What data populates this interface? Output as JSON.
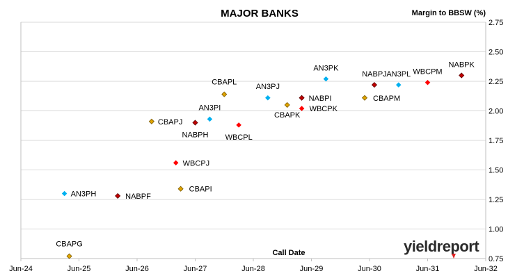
{
  "chart_data": {
    "type": "scatter",
    "title": "MAJOR BANKS",
    "ylabel": "Margin to BBSW (%)",
    "xlabel": "Call Date",
    "ylim": [
      0.75,
      2.75
    ],
    "yticks": [
      "0.75",
      "1.00",
      "1.25",
      "1.50",
      "1.75",
      "2.00",
      "2.25",
      "2.50",
      "2.75"
    ],
    "xlim": [
      "2024-06",
      "2032-06"
    ],
    "xticks": [
      "Jun-24",
      "Jun-25",
      "Jun-26",
      "Jun-27",
      "Jun-28",
      "Jun-29",
      "Jun-30",
      "Jun-31",
      "Jun-32"
    ],
    "grid": "horizontal",
    "colors": {
      "ANZ": "#00b0f0",
      "CBA": "#e0a400",
      "NAB": "#c00000",
      "WBC": "#ff0000"
    },
    "series": [
      {
        "bank": "ANZ",
        "marker": "diamond",
        "points": [
          {
            "label": "AN3PH",
            "x": "2025-03",
            "y": 1.3
          },
          {
            "label": "AN3PI",
            "x": "2027-09",
            "y": 1.93
          },
          {
            "label": "AN3PJ",
            "x": "2028-09",
            "y": 2.11
          },
          {
            "label": "AN3PK",
            "x": "2029-09",
            "y": 2.27
          },
          {
            "label": "AN3PL",
            "x": "2030-12",
            "y": 2.22
          }
        ]
      },
      {
        "bank": "CBA",
        "marker": "diamond",
        "points": [
          {
            "label": "CBAPG",
            "x": "2025-04",
            "y": 0.77
          },
          {
            "label": "CBAPJ",
            "x": "2026-09",
            "y": 1.91
          },
          {
            "label": "CBAPI",
            "x": "2027-03",
            "y": 1.34
          },
          {
            "label": "CBAPL",
            "x": "2027-12",
            "y": 2.14
          },
          {
            "label": "CBAPK",
            "x": "2029-01",
            "y": 2.05
          },
          {
            "label": "CBAPM",
            "x": "2030-05",
            "y": 2.11
          }
        ]
      },
      {
        "bank": "NAB",
        "marker": "diamond",
        "points": [
          {
            "label": "NABPF",
            "x": "2026-02",
            "y": 1.28
          },
          {
            "label": "NABPH",
            "x": "2027-06",
            "y": 1.9
          },
          {
            "label": "NABPI",
            "x": "2029-04",
            "y": 2.11
          },
          {
            "label": "NABPJ",
            "x": "2030-07",
            "y": 2.22
          },
          {
            "label": "NABPK",
            "x": "2032-01",
            "y": 2.3
          }
        ]
      },
      {
        "bank": "WBC",
        "marker": "diamond",
        "points": [
          {
            "label": "WBCPJ",
            "x": "2027-02",
            "y": 1.56
          },
          {
            "label": "WBCPL",
            "x": "2028-03",
            "y": 1.88
          },
          {
            "label": "WBCPK",
            "x": "2029-04",
            "y": 2.02
          },
          {
            "label": "WBCPM",
            "x": "2031-06",
            "y": 2.24
          }
        ]
      }
    ]
  },
  "logo": {
    "text": "yieldreport",
    "colors": {
      "text": "#2b2b2b",
      "accent": "#e02020"
    }
  }
}
